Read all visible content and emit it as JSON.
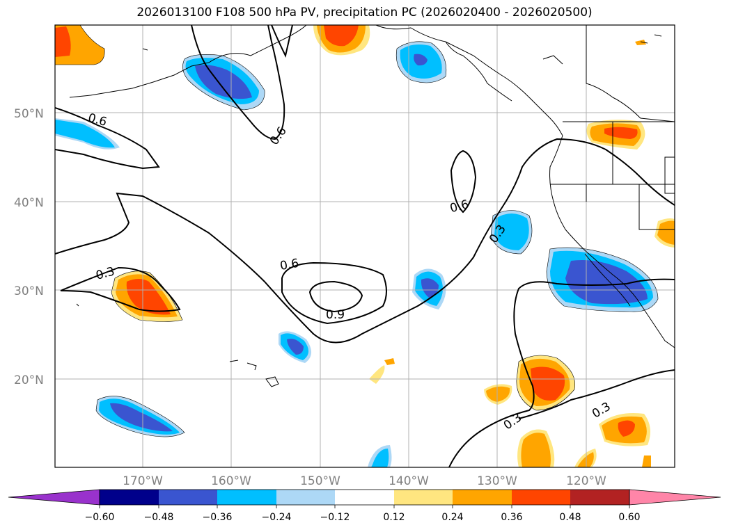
{
  "title": "2026013100 F108 500 hPa PV, precipitation PC (2026020400 - 2026020500)",
  "map": {
    "lon_ticks": [
      "170°W",
      "160°W",
      "150°W",
      "140°W",
      "130°W",
      "120°W"
    ],
    "lat_ticks": [
      "50°N",
      "40°N",
      "30°N",
      "20°N"
    ],
    "lon_range": [
      -180,
      -110
    ],
    "lat_range": [
      10,
      60
    ],
    "grid": true
  },
  "contours": {
    "labels": [
      "0.6",
      "0.6",
      "0.3",
      "0.6",
      "0.9",
      "0.6",
      "0.3",
      "0.3",
      "0.3"
    ],
    "line_color": "#000000"
  },
  "colorbar": {
    "ticks": [
      "−0.60",
      "−0.48",
      "−0.36",
      "−0.24",
      "−0.12",
      "0.12",
      "0.24",
      "0.36",
      "0.48",
      "0.60"
    ],
    "colors": [
      "#9932cc",
      "#00008b",
      "#3a55d0",
      "#00bfff",
      "#add8f6",
      "#ffffff",
      "#ffe680",
      "#ffa500",
      "#ff4500",
      "#b22222",
      "#ff85a8"
    ]
  }
}
